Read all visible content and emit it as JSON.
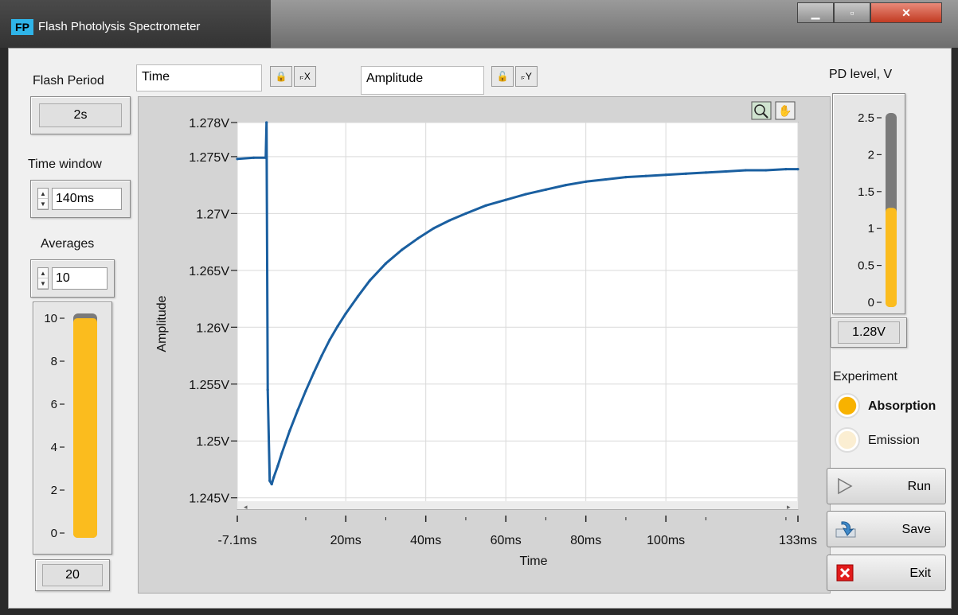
{
  "window": {
    "title": "Flash Photolysis Spectrometer",
    "logo": "FP"
  },
  "controls": {
    "flash_period_label": "Flash Period",
    "flash_period_value": "2s",
    "time_window_label": "Time window",
    "time_window_value": "140ms",
    "averages_label": "Averages",
    "averages_value": "10",
    "averages_count": "20",
    "averages_slider": {
      "ticks": [
        "10",
        "8",
        "6",
        "4",
        "2",
        "0"
      ],
      "level": 10,
      "max": 10
    }
  },
  "scales": {
    "x_name": "Time",
    "y_name": "Amplitude"
  },
  "pd": {
    "label": "PD level, V",
    "ticks": [
      "2.5",
      "2",
      "1.5",
      "1",
      "0.5",
      "0"
    ],
    "level": 1.28,
    "max": 2.5,
    "value": "1.28V"
  },
  "experiment": {
    "label": "Experiment",
    "options": [
      {
        "label": "Absorption",
        "selected": true
      },
      {
        "label": "Emission",
        "selected": false
      }
    ]
  },
  "buttons": {
    "run": "Run",
    "save": "Save",
    "exit": "Exit"
  },
  "colors": {
    "trace": "#1a5fa0",
    "fill": "#fbbc1e",
    "radio_on": "#f8b200"
  },
  "icons": [
    "lock-icon",
    "x-scale-icon",
    "y-scale-icon",
    "zoom-icon",
    "pan-hand-icon",
    "play-icon",
    "save-icon",
    "close-x-icon"
  ],
  "chart_data": {
    "type": "line",
    "xlabel": "Time",
    "ylabel": "Amplitude",
    "x_ticks": [
      "-7.1ms",
      "20ms",
      "40ms",
      "60ms",
      "80ms",
      "100ms",
      "133ms"
    ],
    "x_tick_values": [
      -7.1,
      20,
      40,
      60,
      80,
      100,
      133
    ],
    "y_ticks": [
      "1.278V",
      "1.275V",
      "1.27V",
      "1.265V",
      "1.26V",
      "1.255V",
      "1.25V",
      "1.245V"
    ],
    "y_tick_values": [
      1.278,
      1.275,
      1.27,
      1.265,
      1.26,
      1.255,
      1.25,
      1.245
    ],
    "xlim": [
      -7.1,
      133
    ],
    "ylim": [
      1.244,
      1.278
    ],
    "grid": true,
    "series": [
      {
        "x": [
          -7.1,
          -3,
          0,
          0.2,
          0.5,
          1,
          1.5,
          2,
          3,
          4,
          5,
          6,
          8,
          10,
          12,
          14,
          16,
          18,
          20,
          23,
          26,
          30,
          34,
          38,
          42,
          46,
          50,
          55,
          60,
          65,
          70,
          75,
          80,
          85,
          90,
          95,
          100,
          105,
          110,
          115,
          120,
          125,
          130,
          133
        ],
        "y": [
          1.2748,
          1.2749,
          1.2749,
          1.278,
          1.2545,
          1.2465,
          1.2462,
          1.2468,
          1.2478,
          1.2489,
          1.2499,
          1.2509,
          1.2527,
          1.2544,
          1.256,
          1.2575,
          1.2589,
          1.2601,
          1.2612,
          1.2627,
          1.2641,
          1.2656,
          1.2668,
          1.2678,
          1.2687,
          1.2694,
          1.27,
          1.2707,
          1.2712,
          1.2717,
          1.2721,
          1.2725,
          1.2728,
          1.273,
          1.2732,
          1.2733,
          1.2734,
          1.2735,
          1.2736,
          1.2737,
          1.2738,
          1.2738,
          1.2739,
          1.2739
        ]
      }
    ]
  }
}
